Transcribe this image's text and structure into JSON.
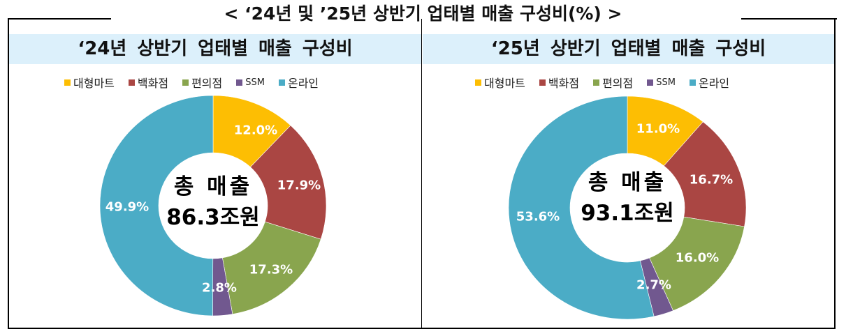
{
  "main_title": "< ‘24년 및 ’25년 상반기 업태별 매출 구성비(%) >",
  "colors": {
    "대형마트": "#fdbe03",
    "백화점": "#aa4643",
    "편의점": "#89a54e",
    "SSM": "#71588f",
    "온라인": "#4bacc6",
    "title_band": "#dcf0fb"
  },
  "legend": [
    {
      "label": "대형마트",
      "color": "#fdbe03"
    },
    {
      "label": "백화점",
      "color": "#aa4643"
    },
    {
      "label": "편의점",
      "color": "#89a54e"
    },
    {
      "label": "SSM",
      "color": "#71588f"
    },
    {
      "label": "온라인",
      "color": "#4bacc6"
    }
  ],
  "panels": [
    {
      "title": "‘24년 상반기 업태별 매출 구성비",
      "center_line1": "총 매출",
      "center_line2": "86.3조원",
      "labels": [
        "12.0%",
        "17.9%",
        "17.3%",
        "2.8%",
        "49.9%"
      ]
    },
    {
      "title": "‘25년 상반기 업태별 매출 구성비",
      "center_line1": "총 매출",
      "center_line2": "93.1조원",
      "labels": [
        "11.0%",
        "16.7%",
        "16.0%",
        "2.7%",
        "53.6%"
      ]
    }
  ],
  "chart_data": [
    {
      "type": "pie",
      "subtype": "donut",
      "title": "‘24년 상반기 업태별 매출 구성비",
      "categories": [
        "대형마트",
        "백화점",
        "편의점",
        "SSM",
        "온라인"
      ],
      "values": [
        12.0,
        17.9,
        17.3,
        2.8,
        49.9
      ],
      "unit": "%",
      "center_text": "총 매출 86.3조원",
      "total": 86.3,
      "total_unit": "조원",
      "legend_position": "top"
    },
    {
      "type": "pie",
      "subtype": "donut",
      "title": "‘25년 상반기 업태별 매출 구성비",
      "categories": [
        "대형마트",
        "백화점",
        "편의점",
        "SSM",
        "온라인"
      ],
      "values": [
        11.0,
        16.7,
        16.0,
        2.7,
        53.6
      ],
      "unit": "%",
      "center_text": "총 매출 93.1조원",
      "total": 93.1,
      "total_unit": "조원",
      "legend_position": "top"
    }
  ]
}
